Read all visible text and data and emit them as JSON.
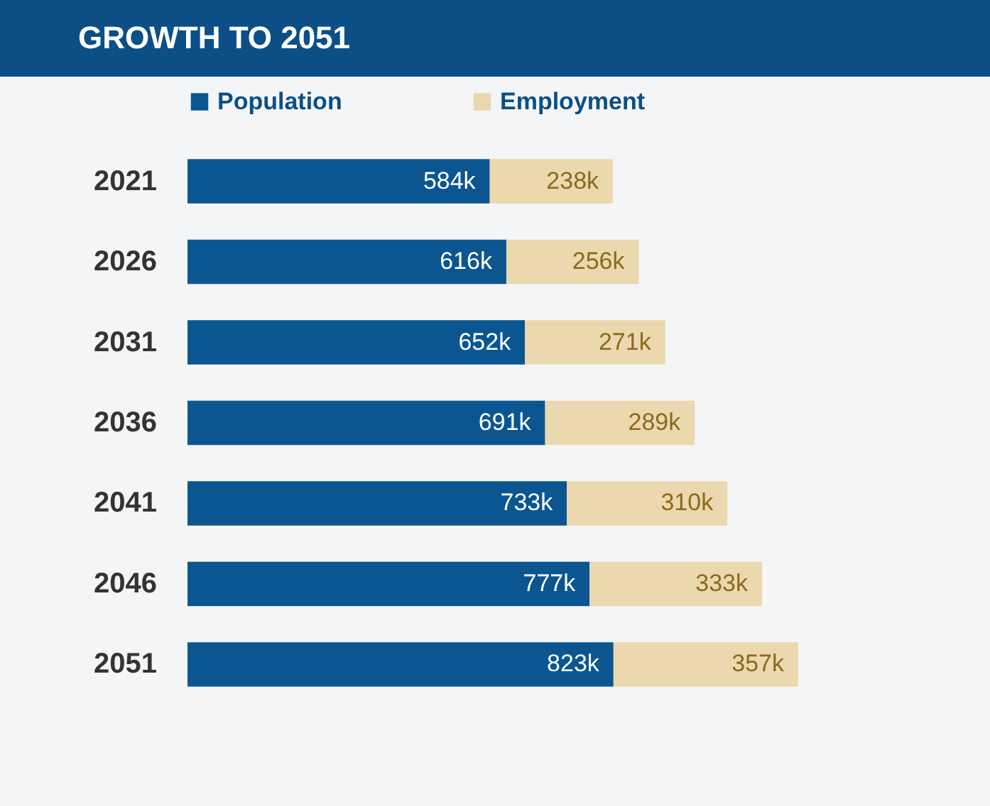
{
  "chart_data": {
    "type": "bar",
    "title": "GROWTH TO 2051",
    "orientation": "horizontal",
    "stacked": true,
    "legend": "top",
    "categories": [
      "2021",
      "2026",
      "2031",
      "2036",
      "2041",
      "2046",
      "2051"
    ],
    "series": [
      {
        "name": "Population",
        "color": "#0b5691",
        "values": [
          584,
          616,
          652,
          691,
          733,
          777,
          823
        ],
        "value_labels": [
          "584k",
          "616k",
          "652k",
          "691k",
          "733k",
          "777k",
          "823k"
        ]
      },
      {
        "name": "Employment",
        "color": "#ecd8ae",
        "values": [
          238,
          256,
          271,
          289,
          310,
          333,
          357
        ],
        "value_labels": [
          "238k",
          "256k",
          "271k",
          "289k",
          "310k",
          "333k",
          "357k"
        ]
      }
    ]
  }
}
